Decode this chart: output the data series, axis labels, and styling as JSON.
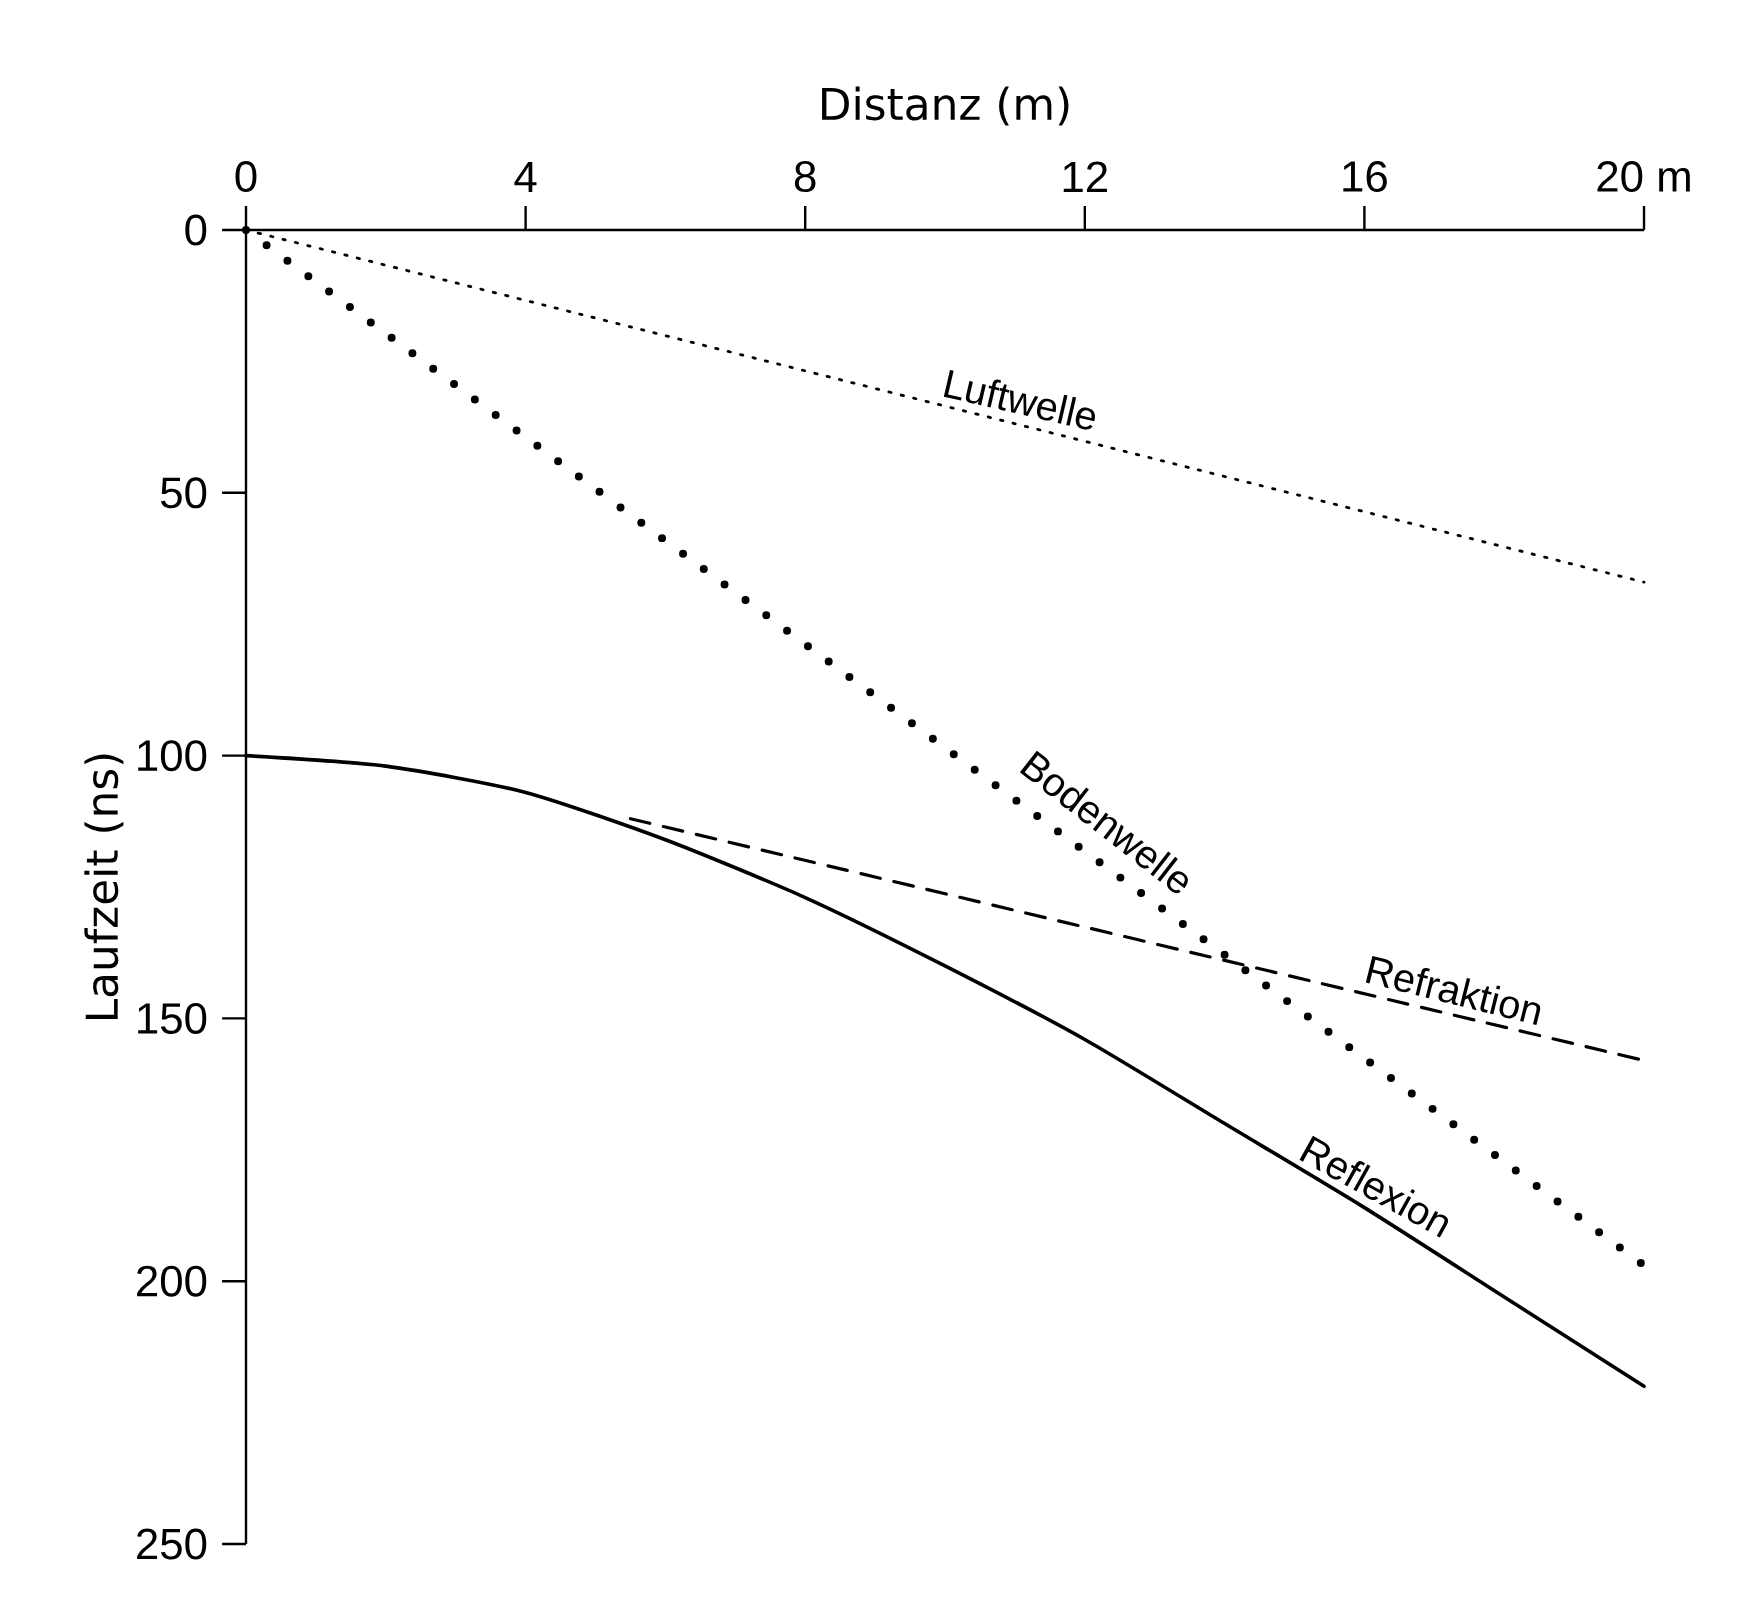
{
  "chart_data": {
    "type": "line",
    "xlabel": "Distanz (m)",
    "ylabel": "Laufzeit (ns)",
    "xlim": [
      0,
      20
    ],
    "xticks": [
      0,
      4,
      8,
      12,
      16,
      {
        "value": 20,
        "label": "20 m"
      }
    ],
    "ylim": [
      250,
      0
    ],
    "yticks": [
      0,
      50,
      100,
      150,
      200,
      250
    ],
    "marker": "none",
    "series": [
      {
        "name": "Luftwelle",
        "color": "#000000",
        "line_style": "dotted",
        "x": [
          0,
          20
        ],
        "values": [
          0,
          67
        ]
      },
      {
        "name": "Bodenwelle",
        "color": "#000000",
        "line_style": "dotted",
        "x": [
          0,
          20
        ],
        "values": [
          0,
          197
        ]
      },
      {
        "name": "Refraktion",
        "color": "#000000",
        "line_style": "dashed",
        "x": [
          5.5,
          20
        ],
        "values": [
          112,
          158
        ]
      },
      {
        "name": "Reflexion",
        "color": "#000000",
        "line_style": "solid",
        "x": [
          0,
          2,
          4,
          6,
          8,
          10,
          12,
          14,
          16,
          18,
          20
        ],
        "values": [
          100,
          102,
          107,
          116,
          127,
          140,
          154,
          170,
          186,
          203,
          220
        ]
      }
    ]
  }
}
